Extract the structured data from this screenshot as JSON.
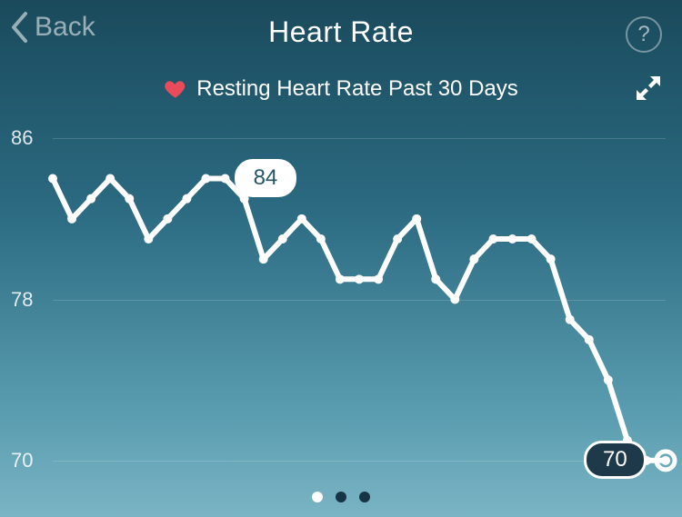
{
  "header": {
    "back_label": "Back",
    "title": "Heart Rate",
    "help_label": "?"
  },
  "subtitle": "Resting Heart Rate Past 30 Days",
  "colors": {
    "bg_top": "#1a4a5c",
    "bg_bottom": "#7ab4c4",
    "line": "#ffffff",
    "heart": "#e94b5a",
    "muted": "rgba(255,255,255,0.55)",
    "grid": "rgba(255,255,255,0.16)",
    "callout_last_bg": "#1e3a4a",
    "dot_active": "#ffffff",
    "dot_inactive": "#173444"
  },
  "chart": {
    "type": "line",
    "ylabel_fontsize": 22,
    "yticks": [
      86,
      78,
      70
    ],
    "ylim": [
      69,
      87
    ],
    "line_color": "#ffffff",
    "line_width": 6,
    "marker_radius": 5,
    "end_marker_radius": 10,
    "end_marker_stroke": 5,
    "values": [
      84,
      82,
      83,
      84,
      83,
      81,
      82,
      83,
      84,
      84,
      83,
      80,
      81,
      82,
      81,
      79,
      79,
      79,
      81,
      82,
      79,
      78,
      80,
      81,
      81,
      81,
      80,
      77,
      76,
      74,
      71,
      70,
      70
    ],
    "first_callout": "84",
    "last_callout": "70"
  },
  "pager": {
    "count": 3,
    "active_index": 0
  }
}
